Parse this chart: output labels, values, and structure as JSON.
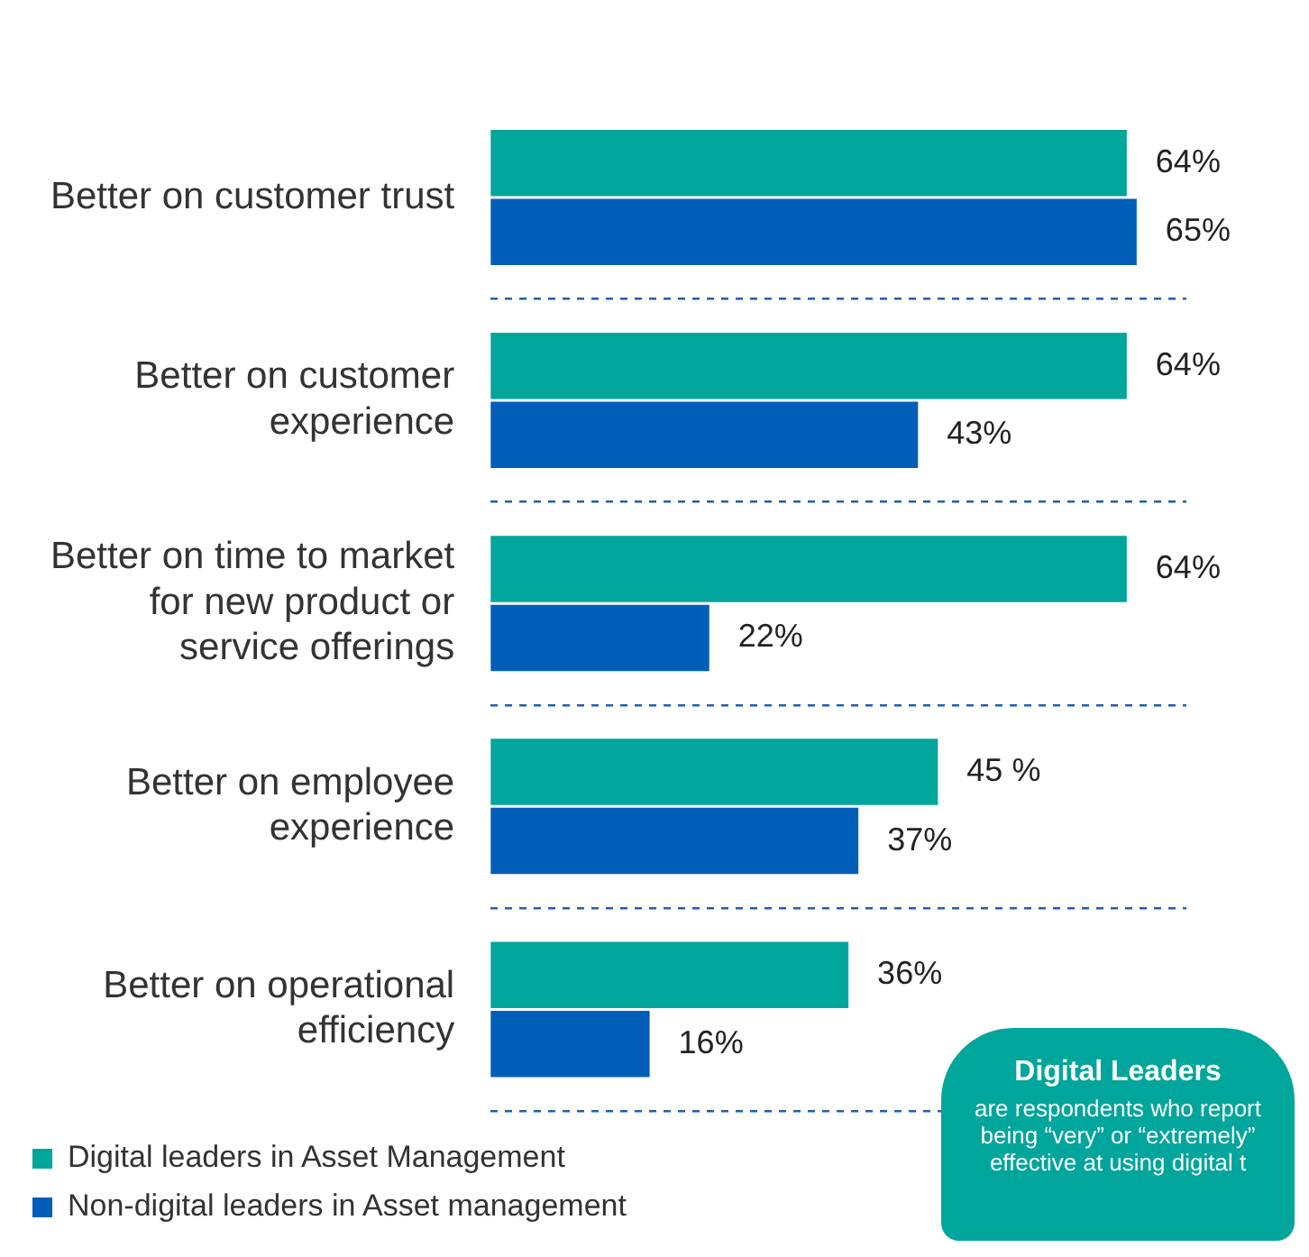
{
  "chart_data": {
    "type": "bar",
    "orientation": "horizontal",
    "categories": [
      "Better on customer trust",
      "Better on customer experience",
      "Better on time to market for new product or service offerings",
      "Better on employee experience",
      "Better on operational efficiency"
    ],
    "series": [
      {
        "name": "Digital leaders in Asset Management",
        "color": "#00a59b",
        "values": [
          64,
          64,
          64,
          45,
          36
        ],
        "value_labels": [
          "64%",
          "64%",
          "64%",
          "45 %",
          "36%"
        ]
      },
      {
        "name": "Non-digital leaders in Asset management",
        "color": "#005eb8",
        "values": [
          65,
          43,
          22,
          37,
          16
        ],
        "value_labels": [
          "65%",
          "43%",
          "22%",
          "37%",
          "16%"
        ]
      }
    ],
    "grid": "y",
    "legend": "bottom left",
    "tick_labels": "y",
    "annotations": [
      "Digital Leaders",
      "are respondents who report being “very” or “extremely” effective at using digital t"
    ]
  }
}
